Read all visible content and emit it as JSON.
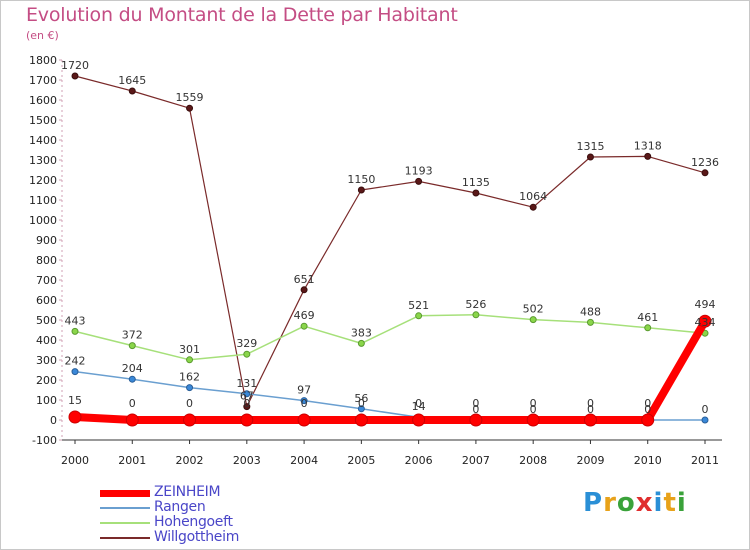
{
  "title": "Evolution du Montant de la Dette par Habitant",
  "subtitle": "(en €)",
  "brand": {
    "text": "Proxiti",
    "letters": [
      "P",
      "r",
      "o",
      "x",
      "i",
      "t",
      "i"
    ],
    "colors": [
      "#2a8fd6",
      "#e8a21a",
      "#3aa23a",
      "#e02e2e",
      "#2a8fd6",
      "#e8a21a",
      "#3aa23a"
    ]
  },
  "chart_data": {
    "type": "line",
    "title": "Evolution du Montant de la Dette par Habitant",
    "ylabel": "(en €)",
    "x": [
      "2000",
      "2001",
      "2002",
      "2003",
      "2004",
      "2005",
      "2006",
      "2007",
      "2008",
      "2009",
      "2010",
      "2011"
    ],
    "ylim": [
      -100,
      1800
    ],
    "yticks": [
      -100,
      0,
      100,
      200,
      300,
      400,
      500,
      600,
      700,
      800,
      900,
      1000,
      1100,
      1200,
      1300,
      1400,
      1500,
      1600,
      1700,
      1800
    ],
    "grid": false,
    "legend_position": "bottom-left",
    "series": [
      {
        "name": "ZEINHEIM",
        "color": "#ff0000",
        "values": [
          15,
          0,
          0,
          0,
          0,
          0,
          0,
          0,
          0,
          0,
          0,
          494
        ],
        "labels": [
          "15",
          "0",
          "0",
          "0",
          "0",
          "0",
          "0",
          "0",
          "0",
          "0",
          "0",
          "494"
        ]
      },
      {
        "name": "Rangen",
        "color": "#6a9fd0",
        "values": [
          242,
          204,
          162,
          131,
          97,
          56,
          14,
          0,
          0,
          0,
          0,
          0
        ],
        "labels": [
          "242",
          "204",
          "162",
          "131",
          "97",
          "56",
          "14",
          "0",
          "0",
          "0",
          "0",
          "0"
        ]
      },
      {
        "name": "Hohengoeft",
        "color": "#a6e07a",
        "values": [
          443,
          372,
          301,
          329,
          469,
          383,
          521,
          526,
          502,
          488,
          461,
          434
        ],
        "labels": [
          "443",
          "372",
          "301",
          "329",
          "469",
          "383",
          "521",
          "526",
          "502",
          "488",
          "461",
          "434"
        ]
      },
      {
        "name": "Willgottheim",
        "color": "#7a2a2a",
        "values": [
          1720,
          1645,
          1559,
          67,
          651,
          1150,
          1193,
          1135,
          1064,
          1315,
          1318,
          1236
        ],
        "labels": [
          "1720",
          "1645",
          "1559",
          "67",
          "651",
          "1150",
          "1193",
          "1135",
          "1064",
          "1315",
          "1318",
          "1236"
        ]
      }
    ]
  }
}
